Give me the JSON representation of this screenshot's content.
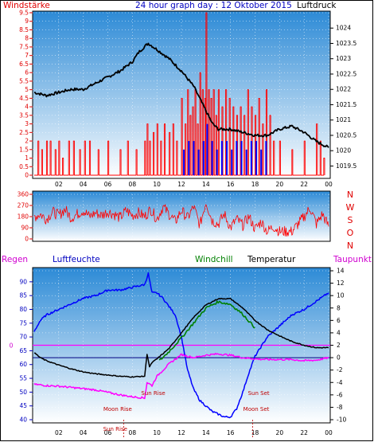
{
  "header": {
    "title": "24 hour graph day : 12 Oktober 2015",
    "left_label": "Windstärke",
    "right_label": "Luftdruck"
  },
  "panel3_header": {
    "regen": "Regen",
    "luftfeuchte": "Luftfeuchte",
    "windchill": "Windchill",
    "temperatur": "Temperatur",
    "taupunkt": "Taupunkt"
  },
  "colors": {
    "pressure": "#000000",
    "wind": "#ff0000",
    "gust_low": "#0000ff",
    "direction": "#ff0000",
    "humidity": "#0000ff",
    "temperature": "#000000",
    "windchill": "#008000",
    "dewpoint": "#ff00ff",
    "rain": "#ff00ff",
    "panel_top": "#2f8fd8",
    "panel_bottom": "#ffffff"
  },
  "chart_data": [
    {
      "type": "line",
      "x_ticks": [
        "02",
        "04",
        "06",
        "08",
        "10",
        "12",
        "14",
        "16",
        "18",
        "20",
        "22",
        "00"
      ],
      "wind_axis": {
        "ticks": [
          "0",
          "0.5",
          "1",
          "1.5",
          "2",
          "2.5",
          "3",
          "3.5",
          "4",
          "4.5",
          "5",
          "5.5",
          "6",
          "6.5",
          "7",
          "7.5",
          "8",
          "8.5",
          "9",
          "9.5"
        ],
        "ylim": [
          0,
          9.5
        ]
      },
      "pressure_axis": {
        "ticks": [
          "1019.5",
          "1020",
          "1020.5",
          "1021",
          "1021.5",
          "1022",
          "1022.5",
          "1023",
          "1023.5",
          "1024"
        ],
        "ylim": [
          1019.2,
          1024.5
        ]
      },
      "series": [
        {
          "key": "pressure",
          "hours": [
            0,
            1,
            2,
            3,
            4,
            5,
            6,
            7,
            8,
            8.5,
            9,
            9.3,
            10,
            11,
            12,
            13,
            13.5,
            14,
            14.5,
            15,
            16,
            17,
            18,
            19,
            20,
            21,
            22,
            23,
            24
          ],
          "values": [
            1021.9,
            1021.8,
            1021.9,
            1022.0,
            1022.0,
            1022.2,
            1022.4,
            1022.6,
            1022.9,
            1023.2,
            1023.4,
            1023.5,
            1023.3,
            1023.0,
            1022.6,
            1022.1,
            1021.7,
            1021.3,
            1020.9,
            1020.7,
            1020.7,
            1020.6,
            1020.5,
            1020.5,
            1020.7,
            1020.8,
            1020.6,
            1020.3,
            1020.1
          ]
        },
        {
          "key": "wind",
          "hours": [
            0.3,
            0.6,
            1.0,
            1.3,
            1.7,
            2.0,
            2.3,
            2.8,
            3.2,
            3.7,
            4.1,
            4.5,
            5.2,
            6.0,
            7.0,
            7.6,
            8.3,
            9.0,
            9.2,
            9.4,
            9.7,
            10.0,
            10.3,
            10.6,
            11.0,
            11.3,
            11.6,
            12.0,
            12.3,
            12.5,
            12.7,
            12.9,
            13.1,
            13.3,
            13.5,
            13.7,
            13.9,
            14.0,
            14.2,
            14.4,
            14.6,
            14.8,
            15.0,
            15.3,
            15.6,
            15.9,
            16.2,
            16.5,
            16.8,
            17.1,
            17.4,
            17.7,
            18.0,
            18.3,
            18.6,
            18.9,
            19.2,
            19.5,
            20.0,
            21.0,
            22.0,
            23.0,
            23.3,
            23.6
          ],
          "values": [
            2.0,
            1.5,
            2.0,
            2.0,
            1.5,
            2.0,
            1.0,
            2.0,
            2.0,
            1.5,
            2.0,
            2.0,
            1.5,
            2.0,
            1.5,
            2.0,
            1.5,
            2.0,
            3.0,
            2.0,
            2.5,
            3.0,
            2.0,
            3.0,
            2.5,
            3.0,
            2.0,
            4.5,
            3.0,
            5.0,
            3.5,
            4.0,
            5.0,
            3.0,
            6.0,
            5.0,
            4.5,
            9.5,
            5.0,
            4.5,
            5.0,
            3.5,
            5.0,
            4.0,
            5.0,
            4.5,
            4.0,
            3.5,
            4.0,
            3.5,
            5.0,
            4.0,
            3.5,
            4.5,
            3.0,
            5.0,
            3.5,
            2.0,
            2.0,
            1.5,
            2.0,
            3.0,
            2.0,
            1.0
          ]
        },
        {
          "key": "gust_low",
          "hours": [
            12.2,
            12.6,
            13.0,
            13.4,
            13.8,
            14.1,
            14.5,
            14.9,
            15.3,
            15.7,
            16.1,
            16.5,
            16.9,
            17.3,
            17.7,
            18.1,
            18.5,
            18.9
          ],
          "values": [
            1.5,
            2.0,
            2.0,
            1.5,
            2.0,
            3.0,
            2.0,
            1.5,
            2.0,
            2.0,
            1.5,
            2.0,
            2.0,
            1.5,
            2.0,
            2.0,
            1.5,
            2.0
          ]
        }
      ]
    },
    {
      "type": "line",
      "x_ticks": [
        "02",
        "04",
        "06",
        "08",
        "10",
        "12",
        "14",
        "16",
        "18",
        "20",
        "22",
        "00"
      ],
      "dir_axis": {
        "ticks": [
          "0",
          "90",
          "180",
          "270",
          "360"
        ],
        "ylim": [
          0,
          360
        ]
      },
      "compass_labels": [
        "N",
        "W",
        "S",
        "O",
        "N"
      ],
      "series": [
        {
          "key": "direction",
          "hours": [
            0,
            0.5,
            1,
            1.5,
            2,
            2.5,
            3,
            3.5,
            4,
            4.5,
            5,
            5.5,
            6,
            6.5,
            7,
            7.5,
            8,
            8.5,
            9,
            9.5,
            10,
            10.5,
            11,
            11.5,
            12,
            12.5,
            13,
            13.5,
            14,
            14.5,
            15,
            15.5,
            16,
            16.5,
            17,
            17.5,
            18,
            18.5,
            19,
            19.5,
            20,
            21,
            22,
            22.5,
            23,
            23.5,
            24
          ],
          "values": [
            180,
            200,
            160,
            220,
            190,
            240,
            170,
            200,
            230,
            180,
            210,
            190,
            220,
            200,
            170,
            230,
            190,
            210,
            180,
            240,
            160,
            260,
            200,
            140,
            230,
            170,
            260,
            110,
            300,
            150,
            120,
            200,
            90,
            160,
            110,
            180,
            80,
            140,
            60,
            100,
            60,
            60,
            180,
            250,
            120,
            200,
            100
          ]
        }
      ]
    },
    {
      "type": "line",
      "x_ticks": [
        "02",
        "04",
        "06",
        "08",
        "10",
        "12",
        "14",
        "16",
        "18",
        "20",
        "22",
        "00"
      ],
      "humidity_axis": {
        "ticks": [
          "40",
          "45",
          "50",
          "55",
          "60",
          "65",
          "70",
          "75",
          "80",
          "85",
          "90"
        ],
        "ylim": [
          40,
          94
        ]
      },
      "temp_axis": {
        "ticks": [
          "-10",
          "-8",
          "-6",
          "-4",
          "-2",
          "0",
          "2",
          "4",
          "6",
          "8",
          "10",
          "12",
          "14"
        ],
        "ylim": [
          -10,
          14
        ]
      },
      "rain_zero": "0",
      "annotations": [
        "Sun Rise",
        "Sun Set",
        "Moon Rise",
        "Moon Set",
        "Sun Rise"
      ],
      "series": [
        {
          "key": "humidity",
          "hours": [
            0,
            0.5,
            1,
            2,
            3,
            4,
            5,
            6,
            7,
            8,
            9,
            9.3,
            9.6,
            10,
            10.5,
            11,
            11.5,
            12,
            12.5,
            13,
            13.5,
            14,
            14.5,
            15,
            15.5,
            16,
            16.5,
            17,
            17.5,
            18,
            19,
            20,
            21,
            22,
            23,
            24
          ],
          "values": [
            72,
            76,
            78,
            80,
            82,
            84,
            85,
            87,
            87,
            88,
            89,
            93,
            86,
            86,
            84,
            81,
            78,
            70,
            58,
            51,
            47,
            45,
            43,
            42,
            41,
            41,
            44,
            50,
            57,
            63,
            70,
            74,
            78,
            80,
            83,
            86
          ]
        },
        {
          "key": "temperature",
          "hours": [
            0,
            0.5,
            1,
            2,
            3,
            4,
            5,
            6,
            7,
            8,
            9,
            9.2,
            9.4,
            9.6,
            10,
            11,
            12,
            13,
            14,
            15,
            16,
            17,
            18,
            19,
            20,
            21,
            22,
            23,
            24
          ],
          "values": [
            0.8,
            0.0,
            -0.5,
            -1.2,
            -1.8,
            -2.3,
            -2.6,
            -2.8,
            -3.0,
            -3.1,
            -3.0,
            0.6,
            -1.5,
            -0.8,
            -0.2,
            1.5,
            4.0,
            6.5,
            8.5,
            9.5,
            9.5,
            8.0,
            6.0,
            4.5,
            3.5,
            2.6,
            2.0,
            1.6,
            1.6
          ]
        },
        {
          "key": "windchill",
          "hours": [
            10.2,
            11,
            12,
            13,
            14,
            15,
            16,
            17,
            18
          ],
          "values": [
            -0.5,
            1.0,
            3.2,
            5.6,
            8.0,
            9.0,
            8.6,
            7.0,
            4.8
          ]
        },
        {
          "key": "dewpoint",
          "hours": [
            0,
            1,
            2,
            3,
            4,
            5,
            6,
            7,
            8,
            9,
            9.2,
            9.6,
            10,
            11,
            12,
            13,
            14,
            15,
            16,
            17,
            18,
            19,
            20,
            21,
            22,
            23,
            24
          ],
          "values": [
            -4.3,
            -4.5,
            -4.6,
            -4.8,
            -5.0,
            -5.2,
            -5.6,
            -6.0,
            -6.3,
            -6.5,
            -4.0,
            -4.5,
            -3.0,
            -1.0,
            0.5,
            0.0,
            0.4,
            0.6,
            0.4,
            0.0,
            -0.2,
            -0.3,
            -0.3,
            -0.3,
            -0.5,
            -0.4,
            0.0
          ]
        },
        {
          "key": "rain",
          "hours": [
            0,
            24
          ],
          "values": [
            0,
            0
          ]
        }
      ]
    }
  ]
}
